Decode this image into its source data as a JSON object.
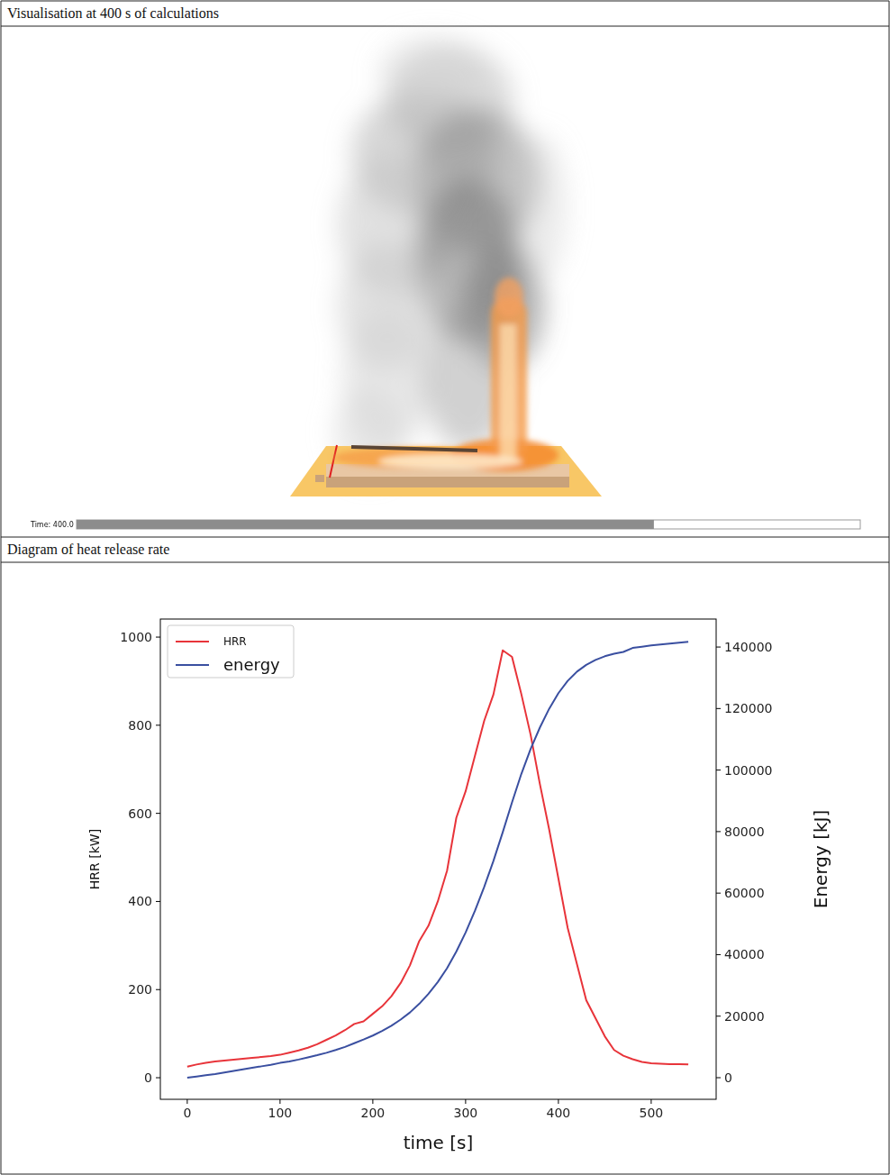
{
  "sections": [
    {
      "title": "Visualisation at 400 s of calculations",
      "time": {
        "value": 400,
        "label": "Time: 400.0"
      },
      "time_range": [
        0,
        543
      ]
    },
    {
      "title": "Diagram of heat release rate"
    }
  ],
  "chart_data": {
    "type": "line",
    "x_label": "time [s]",
    "y_label": "HRR [kW]",
    "y2_label": "Energy [kJ]",
    "x": [
      0,
      10,
      20,
      30,
      40,
      50,
      60,
      70,
      80,
      90,
      100,
      110,
      120,
      130,
      140,
      150,
      160,
      170,
      180,
      190,
      200,
      210,
      220,
      230,
      240,
      250,
      260,
      270,
      280,
      290,
      300,
      310,
      320,
      330,
      340,
      350,
      360,
      370,
      380,
      390,
      400,
      410,
      420,
      430,
      440,
      450,
      460,
      470,
      480,
      490,
      500,
      510,
      520,
      530,
      540
    ],
    "series": [
      {
        "name": "HRR",
        "color": "#e8343a",
        "axis": "y",
        "values": [
          25,
          30,
          34,
          37,
          39,
          41,
          43,
          45,
          47,
          49,
          52,
          57,
          62,
          68,
          76,
          86,
          96,
          108,
          122,
          128,
          145,
          162,
          185,
          215,
          255,
          310,
          345,
          400,
          470,
          590,
          650,
          730,
          810,
          870,
          970,
          955,
          871,
          779,
          667,
          564,
          452,
          340,
          258,
          176,
          135,
          94,
          63,
          50,
          42,
          36,
          33,
          32,
          31,
          31,
          30
        ]
      },
      {
        "name": "energy",
        "color": "#3a4fa0",
        "axis": "y2",
        "values": [
          0,
          400,
          800,
          1200,
          1700,
          2200,
          2700,
          3200,
          3700,
          4200,
          4800,
          5300,
          5900,
          6600,
          7300,
          8100,
          9000,
          10000,
          11200,
          12400,
          13700,
          15200,
          16900,
          18900,
          21200,
          24000,
          27300,
          31100,
          35600,
          41000,
          47200,
          54200,
          62000,
          70500,
          79800,
          89500,
          98700,
          106800,
          113800,
          119900,
          125000,
          129000,
          132000,
          134200,
          135800,
          137000,
          137800,
          138400,
          139700,
          140100,
          140500,
          140800,
          141100,
          141400,
          141700
        ]
      }
    ],
    "xlim": [
      -29,
      570
    ],
    "xticks": [
      0,
      100,
      200,
      300,
      400,
      500
    ],
    "ylim": [
      -49,
      1041
    ],
    "yticks": [
      0,
      200,
      400,
      600,
      800,
      1000
    ],
    "y2lim": [
      -7030,
      149100
    ],
    "y2ticks": [
      0,
      20000,
      40000,
      60000,
      80000,
      100000,
      120000,
      140000
    ],
    "legend": "upper left",
    "grid": false
  }
}
